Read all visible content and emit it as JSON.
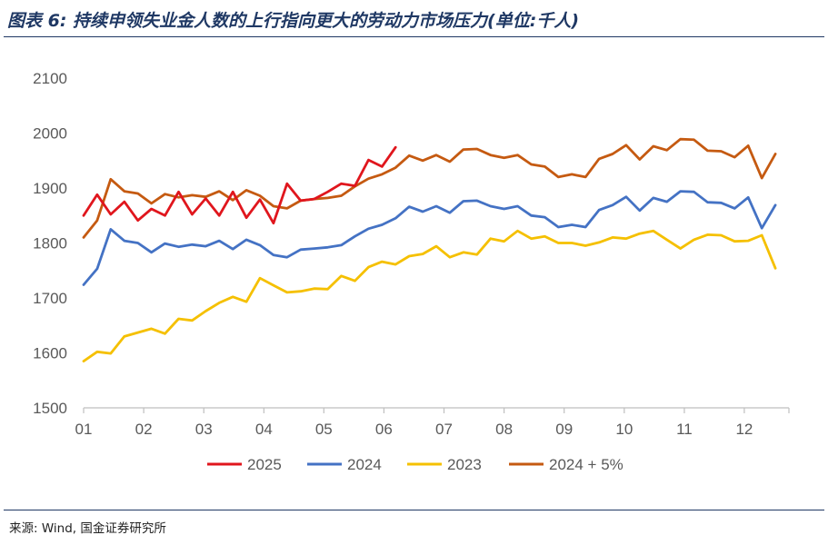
{
  "header": {
    "title": "图表 6: 持续申领失业金人数的上行指向更大的劳动力市场压力(单位:千人)"
  },
  "footer": {
    "source": "来源: Wind, 国金证券研究所"
  },
  "chart_data": {
    "type": "line",
    "title": "",
    "xlabel": "",
    "ylabel": "",
    "ylim": [
      1500,
      2100
    ],
    "yticks": [
      "1500",
      "1600",
      "1700",
      "1800",
      "1900",
      "2000",
      "2100"
    ],
    "xticks": [
      "01",
      "02",
      "03",
      "04",
      "05",
      "06",
      "07",
      "08",
      "09",
      "10",
      "11",
      "12"
    ],
    "x_unit": "week of year (1-53)",
    "grid": false,
    "legend_position": "bottom",
    "series": [
      {
        "name": "2025",
        "color": "#e0161d",
        "x": [
          1,
          2,
          3,
          4,
          5,
          6,
          7,
          8,
          9,
          10,
          11,
          12,
          13,
          14,
          15,
          16,
          17,
          18,
          19,
          20,
          21,
          22,
          23,
          24,
          25,
          26
        ],
        "values": [
          1850,
          1888,
          1852,
          1875,
          1841,
          1862,
          1850,
          1893,
          1852,
          1881,
          1850,
          1893,
          1846,
          1879,
          1836,
          1908,
          1877,
          1880,
          1893,
          1908,
          1904,
          1951,
          1939,
          1974,
          null,
          null
        ]
      },
      {
        "name": "2024",
        "color": "#4472c4",
        "x": [
          1,
          2,
          3,
          4,
          5,
          6,
          7,
          8,
          9,
          10,
          11,
          12,
          13,
          14,
          15,
          16,
          17,
          18,
          19,
          20,
          21,
          22,
          23,
          24,
          25,
          26,
          27,
          28,
          29,
          30,
          31,
          32,
          33,
          34,
          35,
          36,
          37,
          38,
          39,
          40,
          41,
          42,
          43,
          44,
          45,
          46,
          47,
          48,
          49,
          50,
          51,
          52,
          53
        ],
        "values": [
          1724,
          1753,
          1825,
          1804,
          1800,
          1783,
          1799,
          1793,
          1797,
          1794,
          1804,
          1789,
          1806,
          1796,
          1778,
          1774,
          1788,
          1790,
          1792,
          1796,
          1812,
          1826,
          1833,
          1845,
          1866,
          1857,
          1867,
          1855,
          1876,
          1877,
          1867,
          1862,
          1867,
          1850,
          1847,
          1829,
          1833,
          1829,
          1860,
          1869,
          1884,
          1859,
          1882,
          1875,
          1894,
          1893,
          1874,
          1873,
          1863,
          1883,
          1827,
          1869,
          null
        ]
      },
      {
        "name": "2023",
        "color": "#f5c000",
        "x": [
          1,
          2,
          3,
          4,
          5,
          6,
          7,
          8,
          9,
          10,
          11,
          12,
          13,
          14,
          15,
          16,
          17,
          18,
          19,
          20,
          21,
          22,
          23,
          24,
          25,
          26,
          27,
          28,
          29,
          30,
          31,
          32,
          33,
          34,
          35,
          36,
          37,
          38,
          39,
          40,
          41,
          42,
          43,
          44,
          45,
          46,
          47,
          48,
          49,
          50,
          51,
          52,
          53
        ],
        "values": [
          1585,
          1602,
          1599,
          1630,
          1637,
          1644,
          1635,
          1662,
          1659,
          1676,
          1691,
          1702,
          1693,
          1736,
          1723,
          1710,
          1712,
          1717,
          1716,
          1740,
          1731,
          1756,
          1766,
          1761,
          1776,
          1780,
          1794,
          1774,
          1783,
          1779,
          1808,
          1803,
          1822,
          1808,
          1812,
          1800,
          1800,
          1795,
          1801,
          1810,
          1808,
          1817,
          1822,
          1806,
          1790,
          1806,
          1815,
          1814,
          1803,
          1804,
          1814,
          1754,
          null
        ]
      },
      {
        "name": "2024 + 5%",
        "color": "#c55a11",
        "x": [
          1,
          2,
          3,
          4,
          5,
          6,
          7,
          8,
          9,
          10,
          11,
          12,
          13,
          14,
          15,
          16,
          17,
          18,
          19,
          20,
          21,
          22,
          23,
          24,
          25,
          26,
          27,
          28,
          29,
          30,
          31,
          32,
          33,
          34,
          35,
          36,
          37,
          38,
          39,
          40,
          41,
          42,
          43,
          44,
          45,
          46,
          47,
          48,
          49,
          50,
          51,
          52,
          53
        ],
        "values": [
          1810,
          1841,
          1916,
          1894,
          1890,
          1872,
          1889,
          1883,
          1887,
          1884,
          1894,
          1878,
          1896,
          1886,
          1867,
          1863,
          1877,
          1880,
          1882,
          1886,
          1903,
          1917,
          1925,
          1937,
          1959,
          1950,
          1960,
          1948,
          1970,
          1971,
          1960,
          1955,
          1960,
          1943,
          1939,
          1920,
          1925,
          1920,
          1953,
          1962,
          1978,
          1952,
          1976,
          1969,
          1989,
          1988,
          1968,
          1967,
          1956,
          1977,
          1918,
          1962,
          null
        ]
      }
    ],
    "legend": [
      "2025",
      "2024",
      "2023",
      "2024 + 5%"
    ]
  }
}
